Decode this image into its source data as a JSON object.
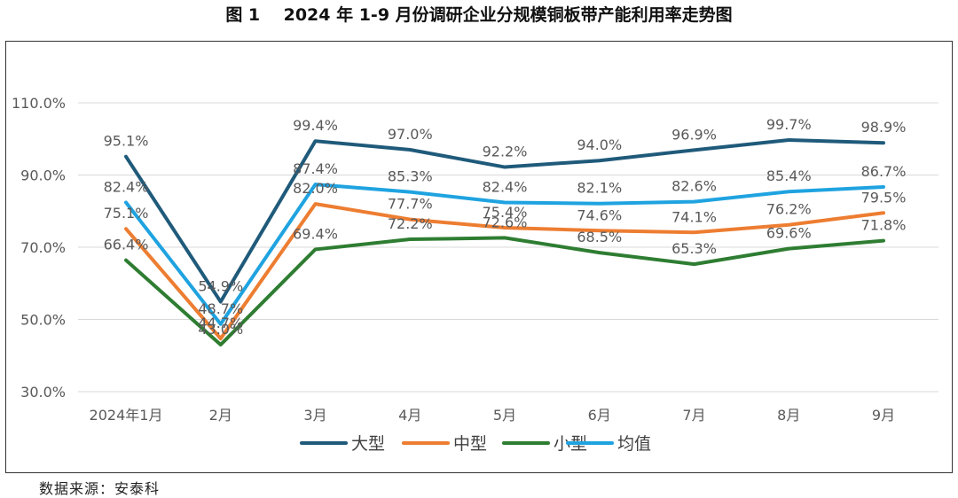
{
  "title": "图 1    2024 年 1-9 月份调研企业分规模铜板带产能利用率走势图",
  "source": "数据来源：安泰科",
  "chart_data": {
    "type": "line",
    "categories": [
      "2024年1月",
      "2月",
      "3月",
      "4月",
      "5月",
      "6月",
      "7月",
      "8月",
      "9月"
    ],
    "ylim": [
      30,
      110
    ],
    "yticks": [
      30,
      50,
      70,
      90,
      110
    ],
    "ytick_labels": [
      "30.0%",
      "50.0%",
      "70.0%",
      "90.0%",
      "110.0%"
    ],
    "grid": true,
    "legend_position": "bottom",
    "series": [
      {
        "name": "大型",
        "color": "#1f5a7a",
        "values": [
          95.1,
          54.9,
          99.4,
          97.0,
          92.2,
          94.0,
          96.9,
          99.7,
          98.9
        ],
        "labels": [
          "95.1%",
          "54.9%",
          "99.4%",
          "97.0%",
          "92.2%",
          "94.0%",
          "96.9%",
          "99.7%",
          "98.9%"
        ]
      },
      {
        "name": "中型",
        "color": "#ed7d31",
        "values": [
          75.1,
          44.7,
          82.0,
          77.7,
          75.4,
          74.6,
          74.1,
          76.2,
          79.5
        ],
        "labels": [
          "75.1%",
          "44.7%",
          "82.0%",
          "77.7%",
          "75.4%",
          "74.6%",
          "74.1%",
          "76.2%",
          "79.5%"
        ]
      },
      {
        "name": "小型",
        "color": "#2e7d32",
        "values": [
          66.4,
          43.0,
          69.4,
          72.2,
          72.6,
          68.5,
          65.3,
          69.6,
          71.8
        ],
        "labels": [
          "66.4%",
          "43.0%",
          "69.4%",
          "72.2%",
          "72.6%",
          "68.5%",
          "65.3%",
          "69.6%",
          "71.8%"
        ]
      },
      {
        "name": "均值",
        "color": "#1fa3e0",
        "values": [
          82.4,
          48.7,
          87.4,
          85.3,
          82.4,
          82.1,
          82.6,
          85.4,
          86.7
        ],
        "labels": [
          "82.4%",
          "48.7%",
          "87.4%",
          "85.3%",
          "82.4%",
          "82.1%",
          "82.6%",
          "85.4%",
          "86.7%"
        ]
      }
    ]
  }
}
